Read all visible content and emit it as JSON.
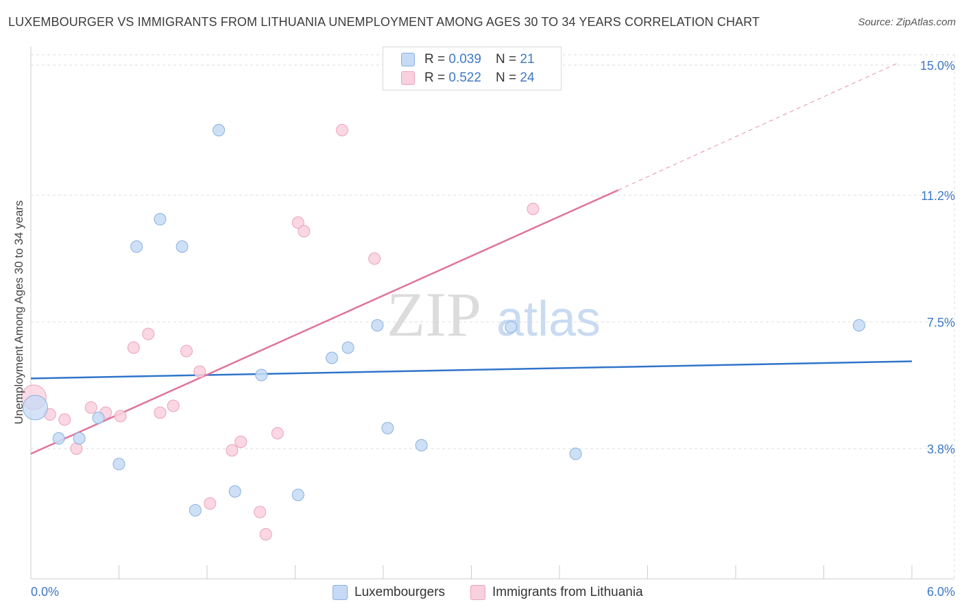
{
  "title": "LUXEMBOURGER VS IMMIGRANTS FROM LITHUANIA UNEMPLOYMENT AMONG AGES 30 TO 34 YEARS CORRELATION CHART",
  "source": "Source: ZipAtlas.com",
  "watermark": {
    "zip": "ZIP",
    "atlas": "atlas"
  },
  "legend_top": [
    {
      "r_label": "R = ",
      "r_value": "0.039",
      "n_label": "N = ",
      "n_value": "21"
    },
    {
      "r_label": "R = ",
      "r_value": "0.522",
      "n_label": "N = ",
      "n_value": "24"
    }
  ],
  "colors": {
    "blue_fill": "#c6daf5",
    "blue_stroke": "#8ab0e0",
    "blue_line": "#2f74c9",
    "pink_fill": "#f9d0dd",
    "pink_stroke": "#eba3bb",
    "pink_line": "#e0729a",
    "tick_label": "#3d78c6",
    "grid": "#dddddd"
  },
  "chart_data": {
    "type": "scatter",
    "title": "LUXEMBOURGER VS IMMIGRANTS FROM LITHUANIA UNEMPLOYMENT AMONG AGES 30 TO 34 YEARS CORRELATION CHART",
    "xlabel": "",
    "ylabel": "Unemployment Among Ages 30 to 34 years",
    "xlim": [
      0,
      6.0
    ],
    "ylim": [
      0,
      15.3
    ],
    "x_tick_labels": [
      "0.0%",
      "6.0%"
    ],
    "y_ticks": [
      3.8,
      7.5,
      11.2,
      15.0
    ],
    "y_tick_labels": [
      "3.8%",
      "7.5%",
      "11.2%",
      "15.0%"
    ],
    "series": [
      {
        "name": "Luxembourgers",
        "points": [
          {
            "x": 0.03,
            "y": 5.0,
            "big": true
          },
          {
            "x": 0.19,
            "y": 4.1
          },
          {
            "x": 0.33,
            "y": 4.1
          },
          {
            "x": 0.46,
            "y": 4.7
          },
          {
            "x": 0.6,
            "y": 3.35
          },
          {
            "x": 0.72,
            "y": 9.7
          },
          {
            "x": 0.88,
            "y": 10.5
          },
          {
            "x": 1.03,
            "y": 9.7
          },
          {
            "x": 1.12,
            "y": 2.0
          },
          {
            "x": 1.28,
            "y": 13.1
          },
          {
            "x": 1.39,
            "y": 2.55
          },
          {
            "x": 1.57,
            "y": 5.95
          },
          {
            "x": 1.82,
            "y": 2.45
          },
          {
            "x": 2.05,
            "y": 6.45
          },
          {
            "x": 2.16,
            "y": 6.75
          },
          {
            "x": 2.36,
            "y": 7.4
          },
          {
            "x": 2.43,
            "y": 4.4
          },
          {
            "x": 2.66,
            "y": 3.9
          },
          {
            "x": 3.27,
            "y": 7.35
          },
          {
            "x": 3.71,
            "y": 3.65
          },
          {
            "x": 5.64,
            "y": 7.4
          }
        ],
        "trend": {
          "x0": 0.0,
          "y0": 5.85,
          "x1": 6.0,
          "y1": 6.35
        }
      },
      {
        "name": "Immigrants from Lithuania",
        "points": [
          {
            "x": 0.02,
            "y": 5.3,
            "big": true
          },
          {
            "x": 0.13,
            "y": 4.8
          },
          {
            "x": 0.23,
            "y": 4.65
          },
          {
            "x": 0.31,
            "y": 3.8
          },
          {
            "x": 0.41,
            "y": 5.0
          },
          {
            "x": 0.51,
            "y": 4.85
          },
          {
            "x": 0.61,
            "y": 4.75
          },
          {
            "x": 0.7,
            "y": 6.75
          },
          {
            "x": 0.8,
            "y": 7.15
          },
          {
            "x": 0.88,
            "y": 4.85
          },
          {
            "x": 0.97,
            "y": 5.05
          },
          {
            "x": 1.06,
            "y": 6.65
          },
          {
            "x": 1.15,
            "y": 6.05
          },
          {
            "x": 1.22,
            "y": 2.2
          },
          {
            "x": 1.37,
            "y": 3.75
          },
          {
            "x": 1.43,
            "y": 4.0
          },
          {
            "x": 1.56,
            "y": 1.95
          },
          {
            "x": 1.6,
            "y": 1.3
          },
          {
            "x": 1.68,
            "y": 4.25
          },
          {
            "x": 1.82,
            "y": 10.4
          },
          {
            "x": 1.86,
            "y": 10.15
          },
          {
            "x": 2.12,
            "y": 13.1
          },
          {
            "x": 2.34,
            "y": 9.35
          },
          {
            "x": 3.42,
            "y": 10.8
          }
        ],
        "trend": {
          "x0": 0.0,
          "y0": 3.65,
          "x1": 4.0,
          "y1": 11.35,
          "dash_to_x": 5.9,
          "dash_to_y": 15.05
        }
      }
    ]
  }
}
